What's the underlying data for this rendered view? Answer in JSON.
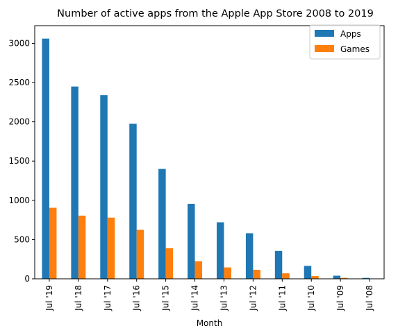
{
  "chart_data": {
    "type": "bar",
    "title": "Number of active apps from the Apple App Store 2008 to 2019",
    "xlabel": "Month",
    "ylabel": "",
    "categories": [
      "Jul '19",
      "Jul '18",
      "Jul '17",
      "Jul '16",
      "Jul '15",
      "Jul '14",
      "Jul '13",
      "Jul '12",
      "Jul '11",
      "Jul '10",
      "Jul '09",
      "Jul '08"
    ],
    "series": [
      {
        "name": "Apps",
        "color": "#1f77b4",
        "values": [
          3060,
          2450,
          2340,
          1975,
          1400,
          955,
          720,
          580,
          355,
          165,
          40,
          12
        ]
      },
      {
        "name": "Games",
        "color": "#ff7f0e",
        "values": [
          905,
          805,
          780,
          625,
          390,
          225,
          145,
          115,
          70,
          35,
          12,
          3
        ]
      }
    ],
    "ylim": [
      0,
      3225
    ],
    "yticks": [
      0,
      500,
      1000,
      1500,
      2000,
      2500,
      3000
    ],
    "legend": "top-right",
    "grid": false
  }
}
